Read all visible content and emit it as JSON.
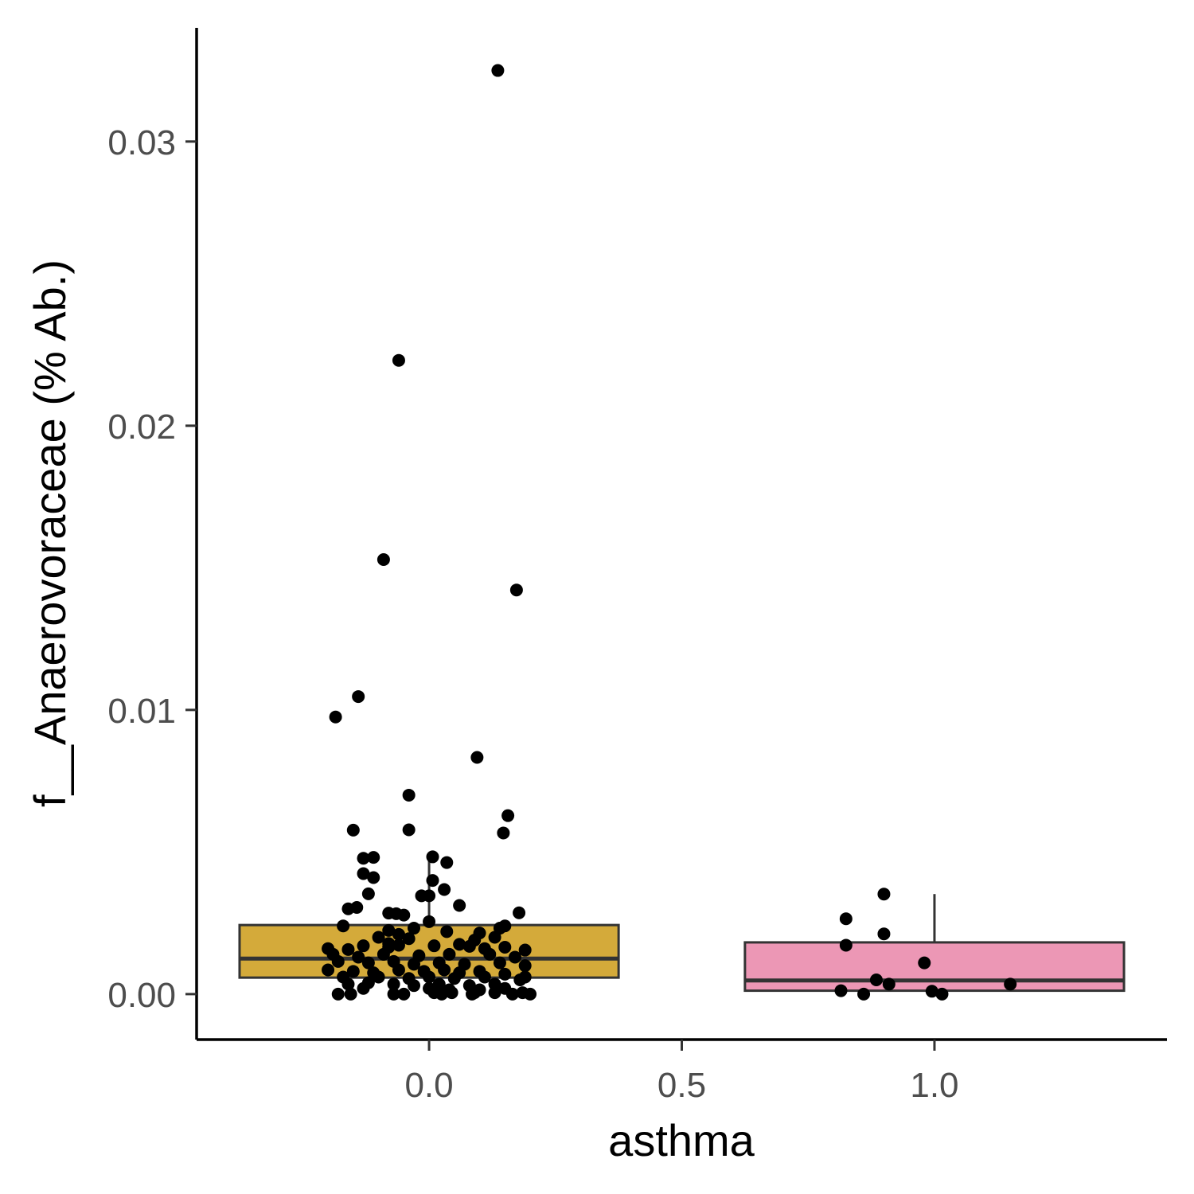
{
  "chart_data": {
    "type": "box",
    "xlabel": "asthma",
    "ylabel": "f__Anaerovoraceae (% Ab.)",
    "xlim": [
      -0.46,
      1.46
    ],
    "ylim": [
      -0.0016,
      0.034
    ],
    "x_ticks": [
      0.0,
      0.5,
      1.0
    ],
    "x_tick_labels": [
      "0.0",
      "0.5",
      "1.0"
    ],
    "y_ticks": [
      0.0,
      0.01,
      0.02,
      0.03
    ],
    "y_tick_labels": [
      "0.00",
      "0.01",
      "0.02",
      "0.03"
    ],
    "grid": false,
    "legend": "none",
    "box_width": 0.75,
    "groups": [
      {
        "x": 0,
        "fill": "#D4AA3A",
        "stats": {
          "min": 0.0,
          "q1": 0.00058,
          "median": 0.00125,
          "q3": 0.00243,
          "max": 0.0049
        },
        "points": [
          [
            0.136,
            0.0325
          ],
          [
            -0.06,
            0.0223
          ],
          [
            -0.09,
            0.01529
          ],
          [
            0.173,
            0.01422
          ],
          [
            -0.14,
            0.01047
          ],
          [
            -0.185,
            0.00975
          ],
          [
            0.095,
            0.00833
          ],
          [
            -0.04,
            0.007
          ],
          [
            0.156,
            0.00628
          ],
          [
            -0.15,
            0.00577
          ],
          [
            -0.04,
            0.00578
          ],
          [
            0.147,
            0.00567
          ],
          [
            0.007,
            0.00483
          ],
          [
            -0.13,
            0.00478
          ],
          [
            -0.11,
            0.00481
          ],
          [
            0.035,
            0.00463
          ],
          [
            -0.13,
            0.00424
          ],
          [
            -0.11,
            0.0041
          ],
          [
            0.007,
            0.004
          ],
          [
            0.03,
            0.00368
          ],
          [
            -0.12,
            0.00353
          ],
          [
            -0.015,
            0.00346
          ],
          [
            0.0,
            0.00346
          ],
          [
            -0.16,
            0.003
          ],
          [
            -0.143,
            0.00305
          ],
          [
            0.06,
            0.00312
          ],
          [
            -0.08,
            0.00285
          ],
          [
            -0.065,
            0.00283
          ],
          [
            -0.05,
            0.00278
          ],
          [
            0.178,
            0.00286
          ],
          [
            0.0,
            0.00255
          ],
          [
            -0.17,
            0.0024
          ],
          [
            -0.03,
            0.00232
          ],
          [
            0.15,
            0.0024
          ],
          [
            0.14,
            0.00232
          ],
          [
            -0.08,
            0.00224
          ],
          [
            -0.06,
            0.0021
          ],
          [
            0.035,
            0.0022
          ],
          [
            0.1,
            0.00215
          ],
          [
            -0.1,
            0.002
          ],
          [
            -0.04,
            0.00195
          ],
          [
            0.13,
            0.002
          ],
          [
            0.09,
            0.0019
          ],
          [
            -0.08,
            0.00178
          ],
          [
            -0.2,
            0.0016
          ],
          [
            -0.16,
            0.00157
          ],
          [
            -0.13,
            0.0017
          ],
          [
            -0.08,
            0.00165
          ],
          [
            -0.06,
            0.00172
          ],
          [
            0.01,
            0.0017
          ],
          [
            0.06,
            0.00175
          ],
          [
            0.08,
            0.00168
          ],
          [
            0.11,
            0.0016
          ],
          [
            0.15,
            0.00165
          ],
          [
            0.19,
            0.00155
          ],
          [
            -0.19,
            0.0014
          ],
          [
            -0.14,
            0.0013
          ],
          [
            -0.09,
            0.0014
          ],
          [
            -0.02,
            0.00135
          ],
          [
            0.04,
            0.0014
          ],
          [
            0.12,
            0.0014
          ],
          [
            0.17,
            0.0013
          ],
          [
            -0.18,
            0.00115
          ],
          [
            -0.12,
            0.0011
          ],
          [
            -0.07,
            0.00115
          ],
          [
            -0.03,
            0.00105
          ],
          [
            0.02,
            0.0011
          ],
          [
            0.07,
            0.00105
          ],
          [
            0.14,
            0.0011
          ],
          [
            0.19,
            0.001
          ],
          [
            -0.2,
            0.00085
          ],
          [
            -0.15,
            0.0008
          ],
          [
            -0.11,
            0.00075
          ],
          [
            -0.06,
            0.00085
          ],
          [
            -0.01,
            0.0008
          ],
          [
            0.03,
            0.00085
          ],
          [
            0.06,
            0.00075
          ],
          [
            0.1,
            0.0008
          ],
          [
            0.15,
            0.0007
          ],
          [
            0.19,
            0.0006
          ],
          [
            -0.17,
            0.0006
          ],
          [
            -0.1,
            0.0006
          ],
          [
            -0.04,
            0.00055
          ],
          [
            0.0,
            0.0006
          ],
          [
            0.05,
            0.00055
          ],
          [
            0.11,
            0.0006
          ],
          [
            0.18,
            0.0005
          ],
          [
            -0.16,
            0.00035
          ],
          [
            -0.12,
            0.0004
          ],
          [
            -0.07,
            0.00035
          ],
          [
            -0.03,
            0.0003
          ],
          [
            0.02,
            0.00035
          ],
          [
            0.08,
            0.0003
          ],
          [
            0.13,
            0.00035
          ],
          [
            -0.13,
            0.0002
          ],
          [
            0.0,
            0.0002
          ],
          [
            0.04,
            0.00015
          ],
          [
            0.1,
            0.00015
          ],
          [
            0.15,
            0.0002
          ],
          [
            -0.18,
            0.0
          ],
          [
            -0.155,
            0.0
          ],
          [
            -0.07,
            0.0
          ],
          [
            -0.05,
            0.0
          ],
          [
            0.01,
            5e-05
          ],
          [
            0.025,
            0.0
          ],
          [
            0.045,
            5e-05
          ],
          [
            0.085,
            0.0
          ],
          [
            0.09,
            5e-05
          ],
          [
            0.13,
            5e-05
          ],
          [
            0.165,
            0.0
          ],
          [
            0.185,
            5e-05
          ],
          [
            0.2,
            0.0
          ]
        ]
      },
      {
        "x": 1,
        "fill": "#EC97B5",
        "stats": {
          "min": 0.0,
          "q1": 0.00012,
          "median": 0.00048,
          "q3": 0.00182,
          "max": 0.00352
        },
        "points": [
          [
            0.9,
            0.00352
          ],
          [
            0.825,
            0.00265
          ],
          [
            0.9,
            0.00212
          ],
          [
            0.825,
            0.00172
          ],
          [
            0.98,
            0.0011
          ],
          [
            0.885,
            0.0005
          ],
          [
            0.91,
            0.00035
          ],
          [
            1.15,
            0.00035
          ],
          [
            0.815,
            0.00012
          ],
          [
            0.86,
            0.0
          ],
          [
            0.995,
            0.0001
          ],
          [
            1.015,
            0.0
          ]
        ]
      }
    ]
  }
}
